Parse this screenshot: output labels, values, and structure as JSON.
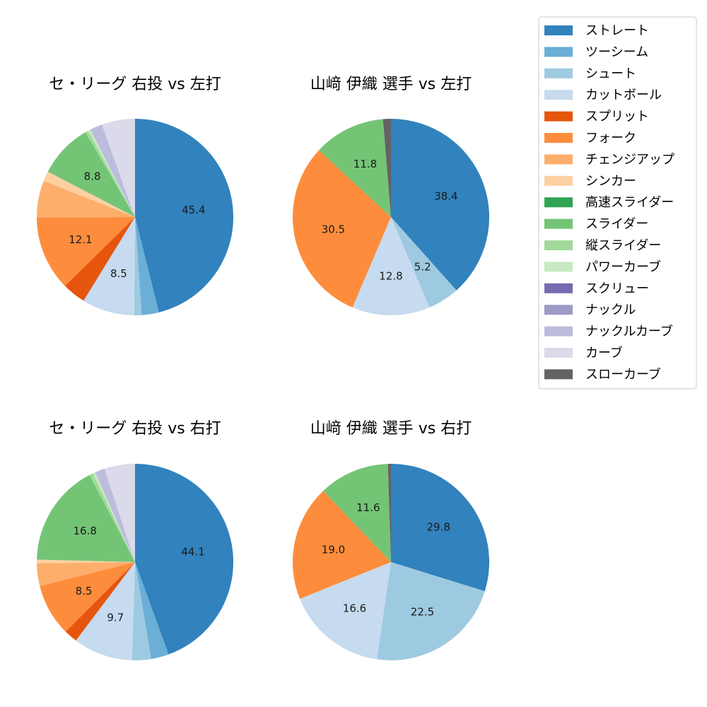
{
  "pitch_types": [
    {
      "name": "ストレート",
      "color": "#3182bd"
    },
    {
      "name": "ツーシーム",
      "color": "#6baed6"
    },
    {
      "name": "シュート",
      "color": "#9ecae1"
    },
    {
      "name": "カットボール",
      "color": "#c6dbef"
    },
    {
      "name": "スプリット",
      "color": "#e6550d"
    },
    {
      "name": "フォーク",
      "color": "#fd8d3c"
    },
    {
      "name": "チェンジアップ",
      "color": "#fdae6b"
    },
    {
      "name": "シンカー",
      "color": "#fdd0a2"
    },
    {
      "name": "高速スライダー",
      "color": "#31a354"
    },
    {
      "name": "スライダー",
      "color": "#74c476"
    },
    {
      "name": "縦スライダー",
      "color": "#a1d99b"
    },
    {
      "name": "パワーカーブ",
      "color": "#c7e9c0"
    },
    {
      "name": "スクリュー",
      "color": "#756bb1"
    },
    {
      "name": "ナックル",
      "color": "#9e9ac8"
    },
    {
      "name": "ナックルカーブ",
      "color": "#bcbddc"
    },
    {
      "name": "カーブ",
      "color": "#dadaeb"
    },
    {
      "name": "スローカーブ",
      "color": "#636363"
    }
  ],
  "chart_data": [
    {
      "type": "pie",
      "title": "セ・リーグ 右投 vs 左打",
      "values": [
        45.4,
        2.8,
        1.2,
        8.5,
        3.8,
        12.1,
        6.0,
        1.6,
        0.0,
        8.8,
        0.5,
        0.4,
        0.0,
        0.0,
        2.0,
        5.4,
        0.0
      ],
      "labels_shown": [
        "45.4",
        "",
        "",
        "8.5",
        "",
        "12.1",
        "",
        "",
        "",
        "8.8",
        "",
        "",
        "",
        "",
        "",
        "",
        ""
      ]
    },
    {
      "type": "pie",
      "title": "山﨑 伊織 選手 vs 左打",
      "values": [
        38.4,
        0.0,
        5.2,
        12.8,
        0.0,
        30.5,
        0.0,
        0.0,
        0.0,
        11.8,
        0.0,
        0.0,
        0.0,
        0.0,
        0.0,
        0.0,
        1.3
      ],
      "labels_shown": [
        "38.4",
        "",
        "5.2",
        "12.8",
        "",
        "30.5",
        "",
        "",
        "",
        "11.8",
        "",
        "",
        "",
        "",
        "",
        "",
        ""
      ]
    },
    {
      "type": "pie",
      "title": "セ・リーグ 右投 vs 右打",
      "values": [
        44.1,
        2.9,
        3.1,
        9.7,
        2.2,
        8.5,
        3.7,
        0.6,
        0.0,
        16.8,
        0.6,
        0.4,
        0.0,
        0.0,
        1.6,
        5.0,
        0.0
      ],
      "labels_shown": [
        "44.1",
        "",
        "",
        "9.7",
        "",
        "8.5",
        "",
        "",
        "",
        "16.8",
        "",
        "",
        "",
        "",
        "",
        "",
        ""
      ]
    },
    {
      "type": "pie",
      "title": "山﨑 伊織 選手 vs 右打",
      "values": [
        29.8,
        0.0,
        22.5,
        16.6,
        0.0,
        19.0,
        0.0,
        0.0,
        0.0,
        11.6,
        0.0,
        0.0,
        0.0,
        0.0,
        0.0,
        0.0,
        0.5
      ],
      "labels_shown": [
        "29.8",
        "",
        "22.5",
        "16.6",
        "",
        "19.0",
        "",
        "",
        "",
        "11.6",
        "",
        "",
        "",
        "",
        "",
        "",
        ""
      ]
    }
  ]
}
